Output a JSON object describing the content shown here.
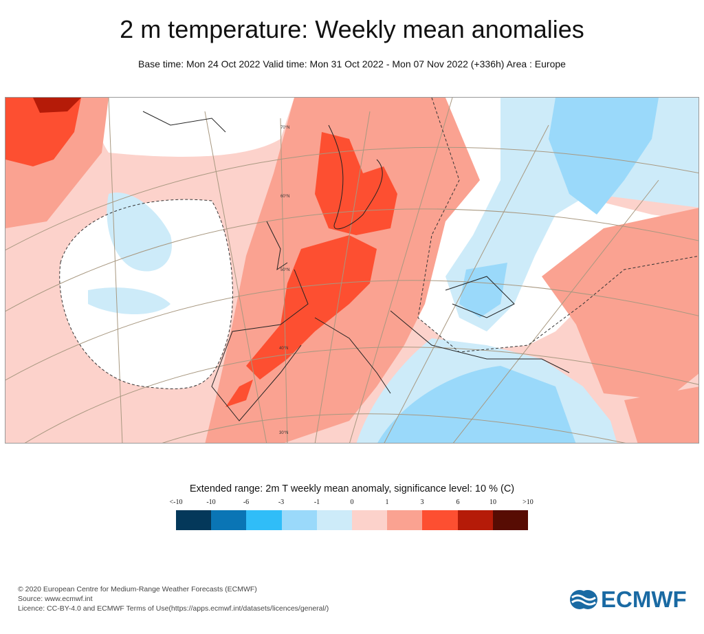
{
  "header": {
    "title": "2 m temperature: Weekly mean anomalies",
    "subtitle": "Base time: Mon 24 Oct 2022 Valid time: Mon 31 Oct 2022 - Mon 07 Nov 2022 (+336h) Area : Europe"
  },
  "map": {
    "latitude_labels": [
      "70°N",
      "60°N",
      "50°N",
      "40°N",
      "30°N"
    ]
  },
  "legend": {
    "title": "Extended range: 2m T weekly mean anomaly, significance level: 10 % (C)",
    "ticks": [
      "<-10",
      "-10",
      "-6",
      "-3",
      "-1",
      "0",
      "1",
      "3",
      "6",
      "10",
      ">10"
    ],
    "colors": [
      "#04385a",
      "#0a75b5",
      "#30bdf8",
      "#9ad9fa",
      "#cdebf9",
      "#fcd2cb",
      "#faa291",
      "#fd4f31",
      "#b51b08",
      "#570c03"
    ]
  },
  "footer": {
    "copyright": "© 2020 European Centre for Medium-Range Weather Forecasts (ECMWF)",
    "source": "Source: www.ecmwf.int",
    "licence": "Licence: CC-BY-4.0 and ECMWF Terms of Use(https://apps.ecmwf.int/datasets/licences/general/)"
  },
  "logo": {
    "text": "ECMWF"
  }
}
